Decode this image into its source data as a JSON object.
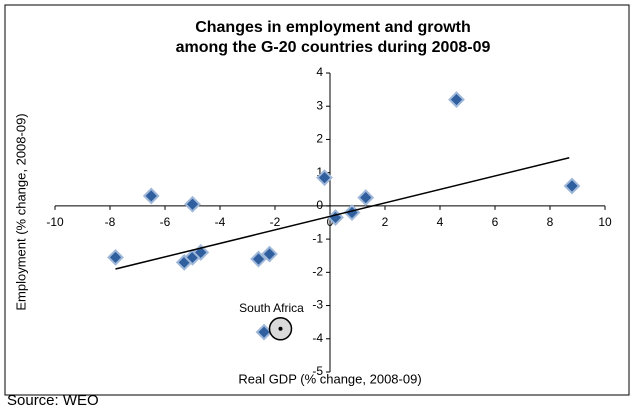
{
  "chart_data": {
    "type": "scatter",
    "title": [
      "Changes in employment and growth",
      "among the G-20 countries during 2008-09"
    ],
    "x_label": "Real GDP (% change, 2008-09)",
    "y_label": "Employment (% change, 2008-09)",
    "source": "Source: WEO",
    "series": [
      {
        "color": "#2f5f9e",
        "x": [
          -7.8,
          -6.5,
          -5.0,
          -5.3,
          -5.0,
          -4.7,
          -2.6,
          -2.2,
          -2.4,
          -0.2,
          0.2,
          0.8,
          1.3,
          4.6,
          8.8
        ],
        "values": [
          -1.55,
          0.3,
          0.05,
          -1.7,
          -1.55,
          -1.4,
          -1.6,
          -1.45,
          -3.8,
          0.85,
          -0.35,
          -0.2,
          0.25,
          3.2,
          0.6
        ]
      }
    ],
    "trendline": {
      "color": "#000000",
      "x": [
        -7.8,
        8.7
      ],
      "values": [
        -1.9,
        1.45
      ]
    },
    "annotations": [
      {
        "text": "South Africa",
        "x": -1.8,
        "y": -3.7
      }
    ],
    "xlim": [
      -10,
      10
    ],
    "xticks": [
      -10,
      -8,
      -6,
      -4,
      -2,
      0,
      2,
      4,
      6,
      8,
      10
    ],
    "ylim": [
      -5,
      4
    ],
    "yticks": [
      -5,
      -4,
      -3,
      -2,
      -1,
      0,
      1,
      2,
      3,
      4
    ]
  }
}
